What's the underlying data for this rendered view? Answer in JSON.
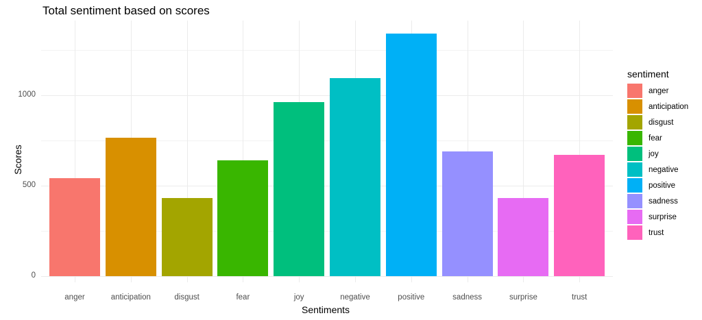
{
  "chart_data": {
    "type": "bar",
    "title": "Total sentiment based on scores",
    "xlabel": "Sentiments",
    "ylabel": "Scores",
    "categories": [
      "anger",
      "anticipation",
      "disgust",
      "fear",
      "joy",
      "negative",
      "positive",
      "sadness",
      "surprise",
      "trust"
    ],
    "values": [
      542,
      765,
      432,
      640,
      962,
      1095,
      1341,
      689,
      432,
      670
    ],
    "colors": [
      "#F8766D",
      "#D89000",
      "#A3A500",
      "#39B600",
      "#00BF7D",
      "#00BFC4",
      "#00B0F6",
      "#9590FF",
      "#E76BF3",
      "#FF62BC"
    ],
    "yticks": [
      0,
      500,
      1000
    ],
    "ylim": [
      0,
      1400
    ],
    "grid": true,
    "legend": {
      "title": "sentiment",
      "position": "right"
    }
  }
}
